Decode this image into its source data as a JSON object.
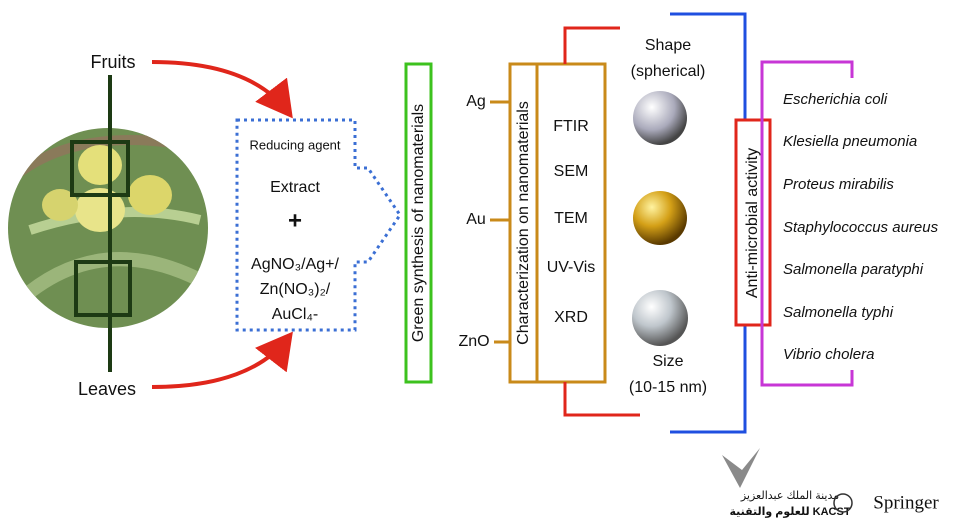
{
  "sources": {
    "fruits": "Fruits",
    "leaves": "Leaves"
  },
  "extract_box": {
    "reducing_agent": "Reducing agent",
    "extract": "Extract",
    "plus": "+",
    "salts": [
      "AgNO₃/Ag+/",
      "Zn(NO₃)₂/",
      "AuCl₄-"
    ]
  },
  "synthesis": {
    "label": "Green synthesis of nanomaterials",
    "nanomaterials": [
      "Ag",
      "Au",
      "ZnO"
    ]
  },
  "characterization": {
    "label": "Characterization on nanomaterials",
    "methods": [
      "FTIR",
      "SEM",
      "TEM",
      "UV-Vis",
      "XRD"
    ]
  },
  "properties": {
    "shape": [
      "Shape",
      "(spherical)"
    ],
    "size": [
      "Size",
      "(10-15 nm)"
    ]
  },
  "activity": {
    "label": "Anti-microbial activity",
    "organisms": [
      "Escherichia coli",
      "Klesiella pneumonia",
      "Proteus mirabilis",
      "Staphylococcus aureus",
      "Salmonella paratyphi",
      "Salmonella typhi",
      "Vibrio cholera"
    ]
  },
  "footer": {
    "kacst_line1": "مدينة الملك عبدالعزيز",
    "kacst_line2": "للعلوم والتقنية KACST",
    "publisher": "Springer"
  }
}
